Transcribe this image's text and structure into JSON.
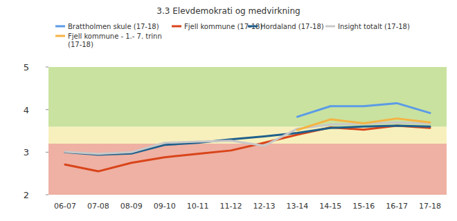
{
  "chart_data": {
    "type": "line",
    "title": "3.3 Elevdemokrati og medvirkning",
    "categories": [
      "06-07",
      "07-08",
      "08-09",
      "09-10",
      "10-11",
      "11-12",
      "12-13",
      "13-14",
      "14-15",
      "15-16",
      "16-17",
      "17-18"
    ],
    "series": [
      {
        "name": "Brattholmen skule (17-18)",
        "color": "#5b9be6",
        "values": [
          null,
          null,
          null,
          null,
          null,
          null,
          null,
          3.83,
          4.08,
          4.08,
          4.15,
          3.92
        ]
      },
      {
        "name": "Fjell kommune (17-18)",
        "color": "#d9441a",
        "values": [
          2.71,
          2.55,
          2.75,
          2.88,
          2.96,
          3.04,
          3.22,
          3.41,
          3.58,
          3.53,
          3.62,
          3.57
        ]
      },
      {
        "name": "Hordaland (17-18)",
        "color": "#1f5f8b",
        "values": [
          3.0,
          2.94,
          2.97,
          3.17,
          3.22,
          3.3,
          3.37,
          3.45,
          3.57,
          3.6,
          3.62,
          3.6
        ]
      },
      {
        "name": "Insight totalt (17-18)",
        "color": "#c8c8c8",
        "values": [
          3.01,
          2.96,
          3.0,
          3.22,
          3.25,
          3.27,
          3.15,
          3.55,
          3.65,
          3.67,
          3.7,
          3.67
        ]
      },
      {
        "name": "Fjell kommune - 1.- 7. trinn (17-18)",
        "color": "#f5b342",
        "values": [
          null,
          null,
          null,
          null,
          null,
          null,
          null,
          3.52,
          3.77,
          3.68,
          3.79,
          3.7
        ]
      }
    ],
    "bands": [
      {
        "from": 2,
        "to": 3.2,
        "color": "#eeb1a3"
      },
      {
        "from": 3.2,
        "to": 3.6,
        "color": "#f7f0bd"
      },
      {
        "from": 3.6,
        "to": 5,
        "color": "#c9e29f"
      }
    ],
    "ylim": [
      2,
      5
    ],
    "yticks": [
      2,
      3,
      4,
      5
    ],
    "grid": false
  }
}
